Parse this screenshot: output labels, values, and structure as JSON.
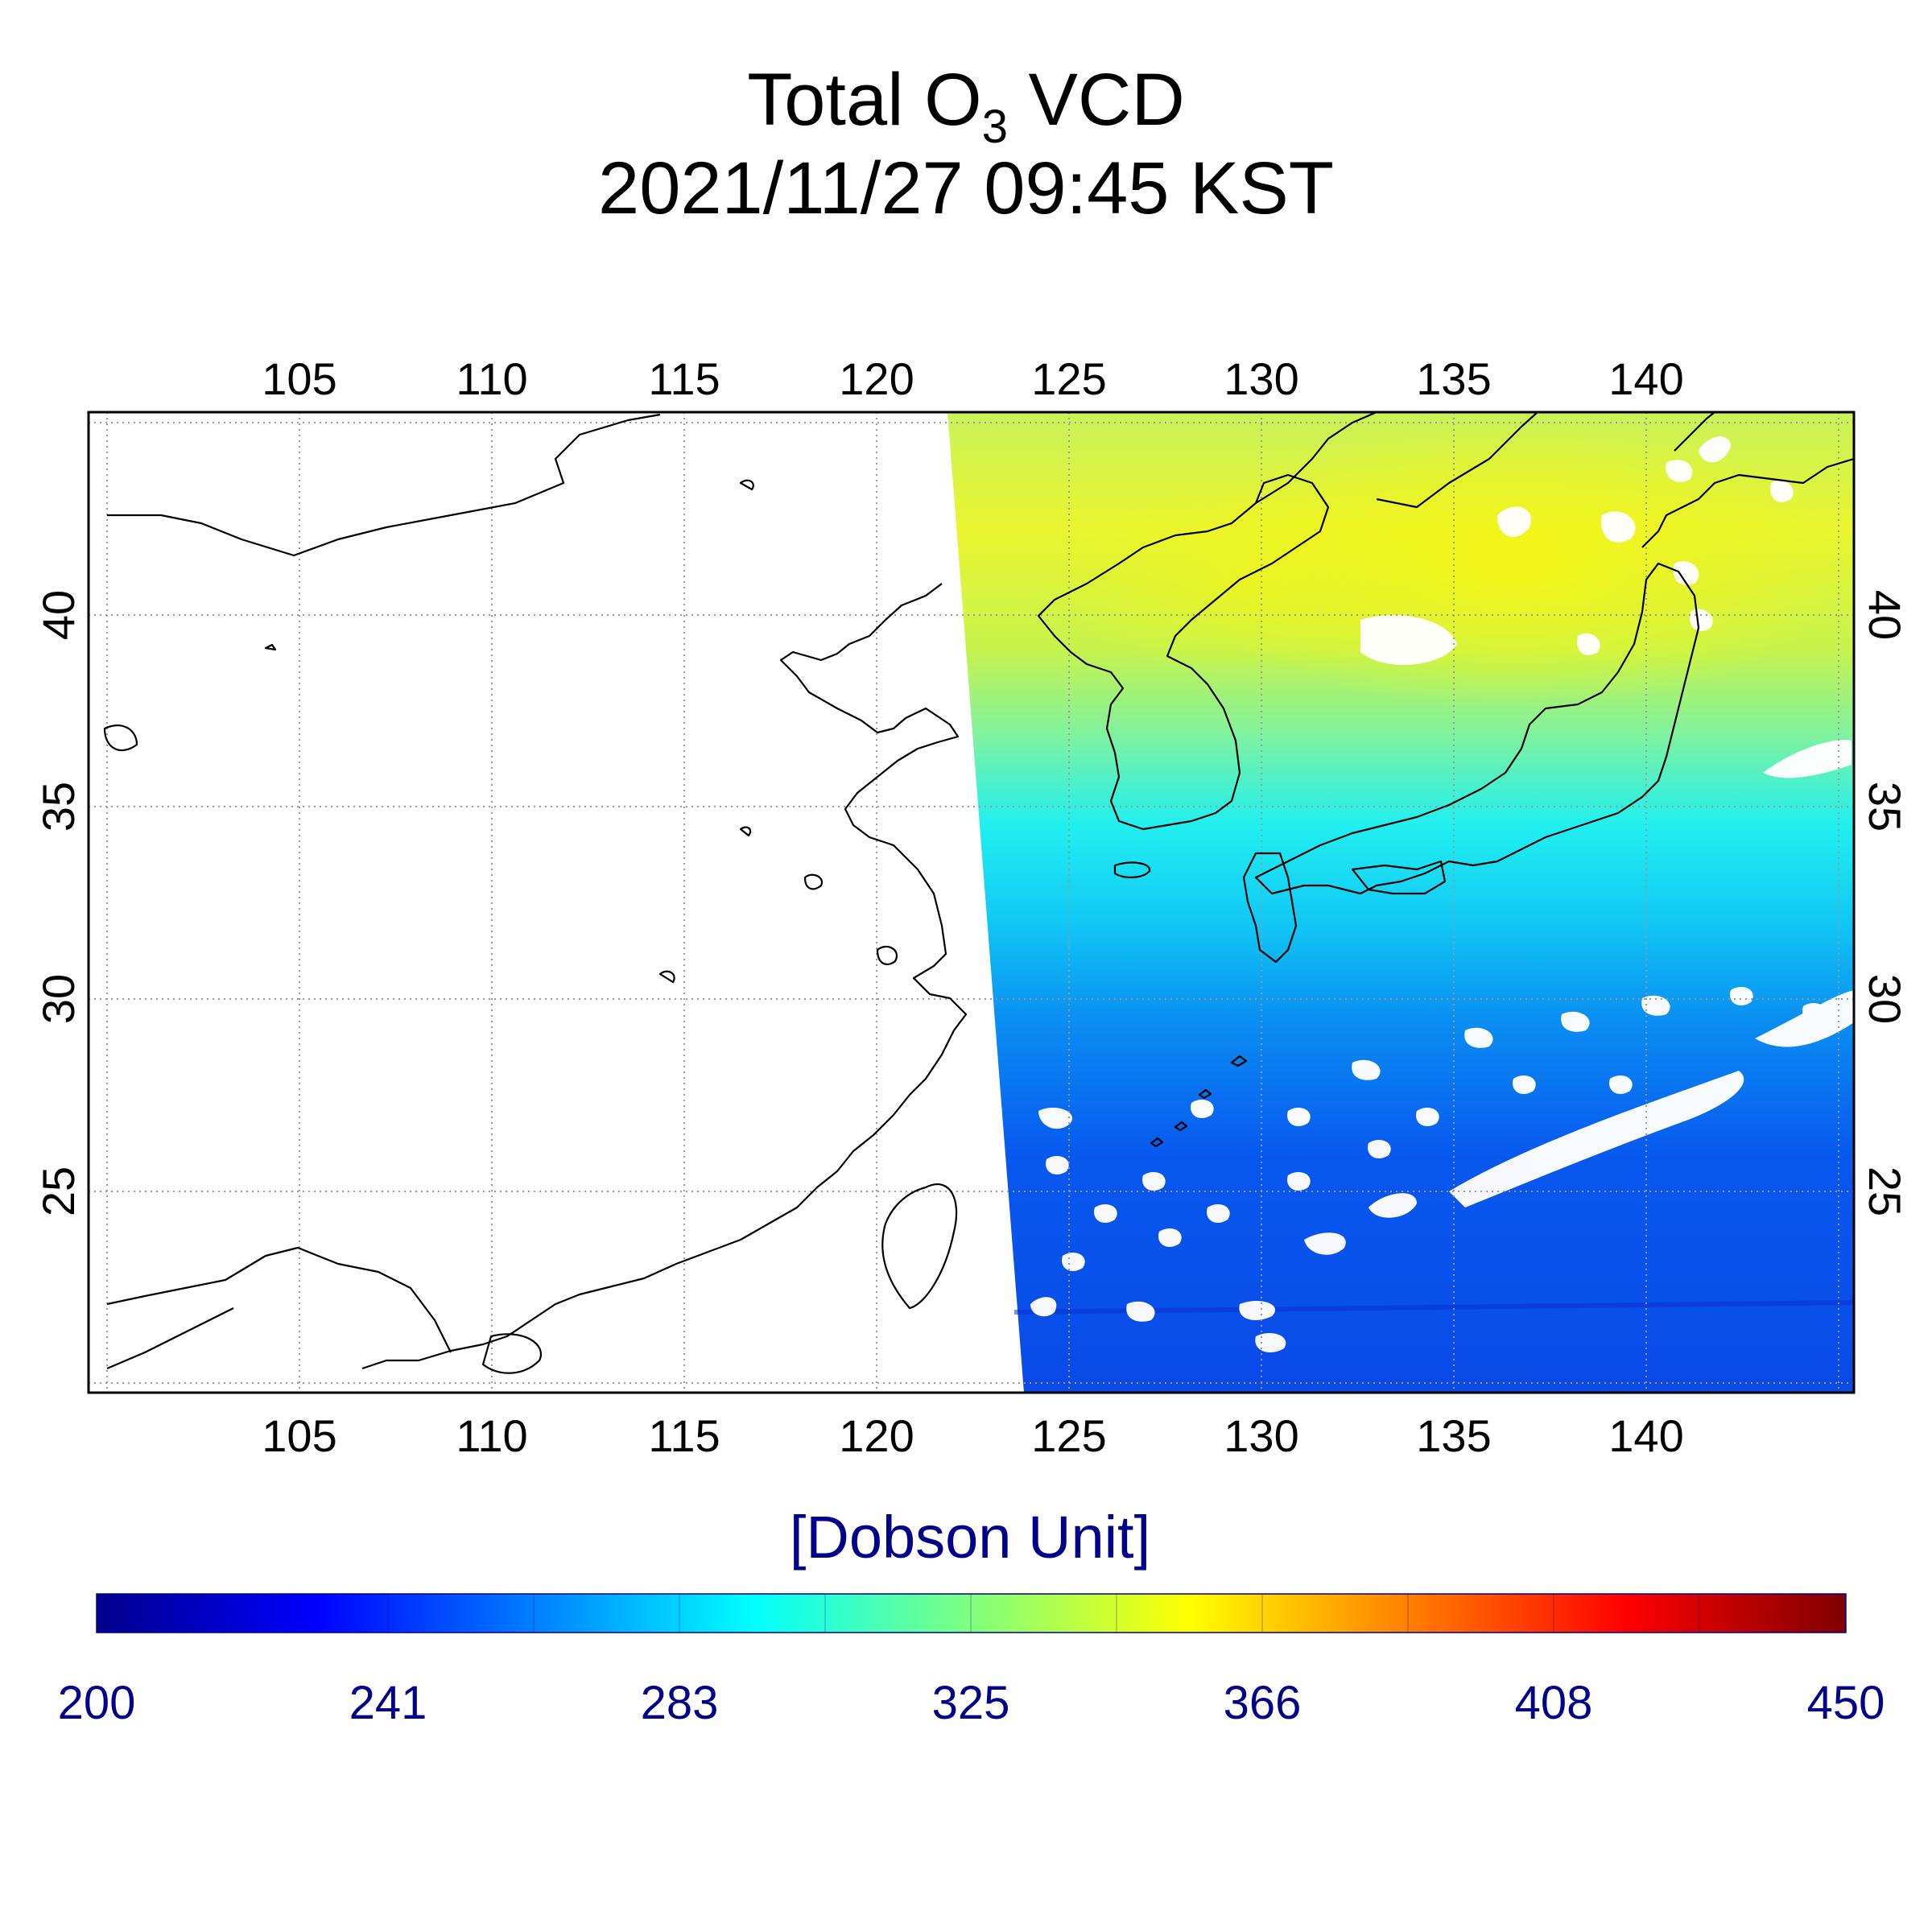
{
  "title": {
    "prefix": "Total O",
    "subscript": "3",
    "suffix": " VCD",
    "datetime": "2021/11/27 09:45 KST"
  },
  "map": {
    "lon_ticks": [
      "105",
      "110",
      "115",
      "120",
      "125",
      "130",
      "135",
      "140"
    ],
    "lat_ticks": [
      "40",
      "35",
      "30",
      "25"
    ],
    "lon_range": [
      99.5,
      145.5
    ],
    "lat_range": [
      20,
      45.5
    ],
    "grid": true,
    "data_coverage": "east of ~122–124°E swath edge; west part blank (no data)",
    "clouds": "white masked pixels scattered over ocean south of 30°N and near 40°N, 133–140°E"
  },
  "colorbar": {
    "unit": "[Dobson Unit]",
    "labels": [
      "200",
      "241",
      "283",
      "325",
      "366",
      "408",
      "450"
    ],
    "min": 200,
    "max": 450,
    "colormap": "jet",
    "colors": [
      "#00008b",
      "#0000ff",
      "#007fff",
      "#00ffff",
      "#7fff7f",
      "#ffff00",
      "#ff7f00",
      "#ff0000",
      "#7f0000"
    ]
  }
}
